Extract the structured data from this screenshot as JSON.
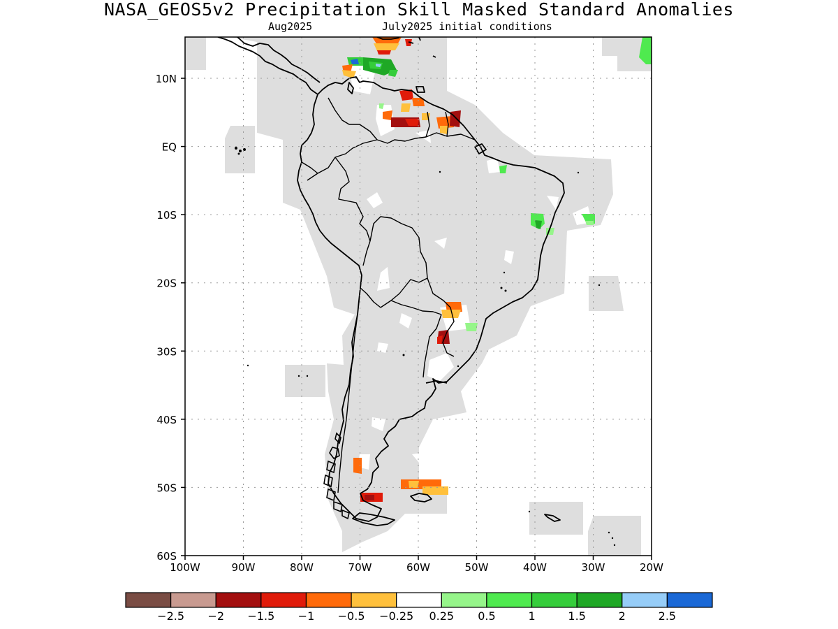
{
  "title": "NASA_GEOS5v2 Precipitation Skill Masked Standard Anomalies",
  "subtitle_month": "Aug2025",
  "subtitle_init": "July2025 initial conditions",
  "axes": {
    "lon_labels": [
      "100W",
      "90W",
      "80W",
      "70W",
      "60W",
      "50W",
      "40W",
      "30W",
      "20W"
    ],
    "lat_labels": [
      "10N",
      "EQ",
      "10S",
      "20S",
      "30S",
      "40S",
      "50S",
      "60S"
    ],
    "lon_range": [
      -100,
      -20
    ],
    "lat_range": [
      -60,
      14
    ],
    "grid": true
  },
  "colorbar": {
    "colors": [
      "#7a4d44",
      "#c89a90",
      "#a30f0f",
      "#e01b0a",
      "#ff6a0a",
      "#ffc03c",
      "#ffffff",
      "#96f58a",
      "#4fea4f",
      "#35cd3b",
      "#1fa826",
      "#96cdf8",
      "#1a68d6"
    ],
    "tick_labels": [
      "−2.5",
      "−2",
      "−1.5",
      "−1",
      "−0.5",
      "−0.25",
      "0.25",
      "0.5",
      "1",
      "1.5",
      "2",
      "2.5"
    ]
  },
  "colors": {
    "skill_mask": "#dedede",
    "coast": "#000000",
    "grid": "#999999"
  }
}
